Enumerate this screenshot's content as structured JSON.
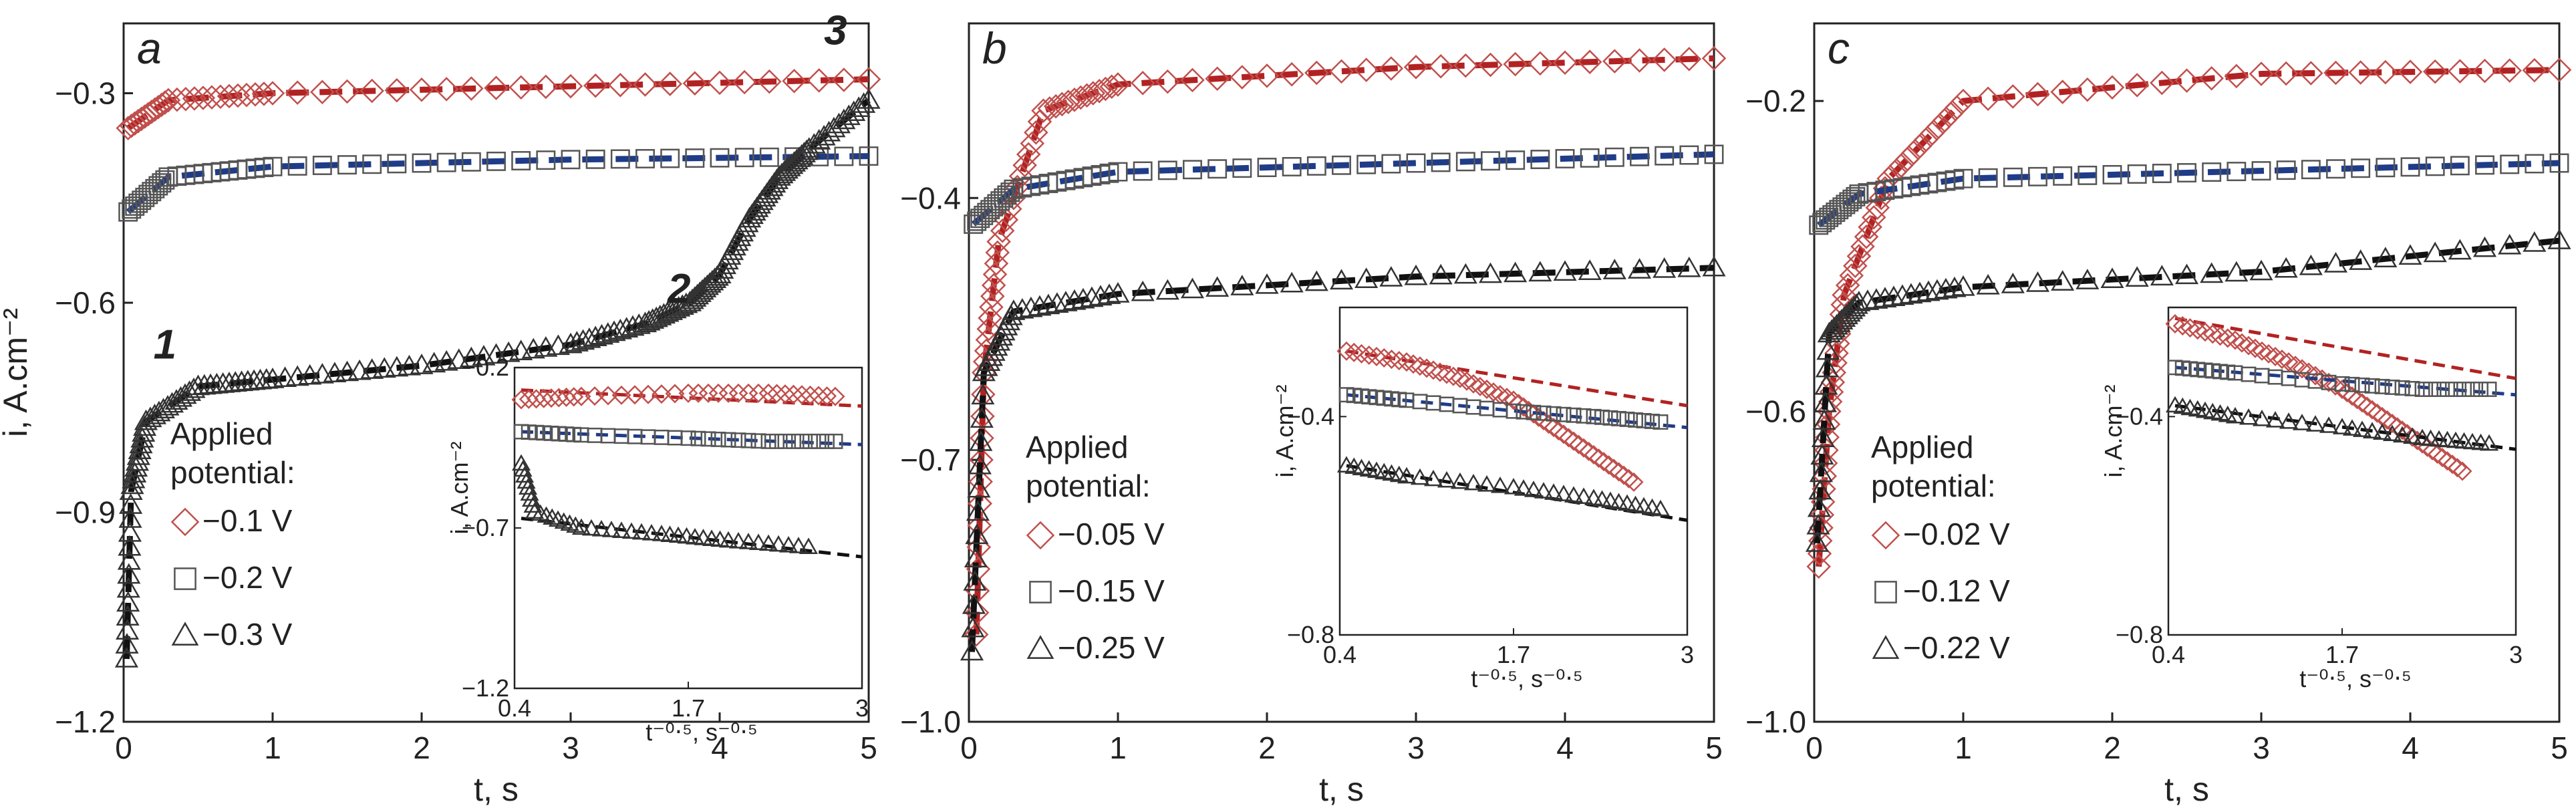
{
  "chart_data": [
    {
      "type": "scatter",
      "letter": "a",
      "xlabel": "t, s",
      "ylabel": "i, A.cm⁻²",
      "xlim": [
        0,
        5
      ],
      "ylim": [
        -1.2,
        -0.2
      ],
      "xticks": [
        "0",
        "1",
        "2",
        "3",
        "4",
        "5"
      ],
      "yticks": [
        "-0.3",
        "-0.6",
        "-0.9",
        "-1.2"
      ],
      "legend_title": [
        "Applied",
        "potential:"
      ],
      "annotations": [
        {
          "text": "1",
          "x": 0.2,
          "y": -0.68
        },
        {
          "text": "2",
          "x": 3.65,
          "y": -0.6
        },
        {
          "text": "3",
          "x": 4.7,
          "y": -0.23
        }
      ],
      "series": [
        {
          "name": "−0.1 V",
          "marker": "diamond",
          "color": "#c0504d",
          "fit_color": "#b22222",
          "points": [
            [
              0.03,
              -0.35
            ],
            [
              0.3,
              -0.31
            ],
            [
              1,
              -0.3
            ],
            [
              3,
              -0.29
            ],
            [
              5,
              -0.28
            ]
          ]
        },
        {
          "name": "−0.2 V",
          "marker": "square",
          "color": "#555555",
          "fit_color": "#1f3c88",
          "points": [
            [
              0.03,
              -0.47
            ],
            [
              0.3,
              -0.42
            ],
            [
              1,
              -0.405
            ],
            [
              3,
              -0.395
            ],
            [
              5,
              -0.39
            ]
          ]
        },
        {
          "name": "−0.3 V",
          "marker": "triangle",
          "color": "#333333",
          "fit_color": "#111111",
          "points": [
            [
              0.02,
              -1.11
            ],
            [
              0.05,
              -0.87
            ],
            [
              0.15,
              -0.77
            ],
            [
              0.5,
              -0.72
            ],
            [
              1,
              -0.71
            ],
            [
              2,
              -0.69
            ],
            [
              3,
              -0.66
            ],
            [
              3.5,
              -0.63
            ],
            [
              3.8,
              -0.6
            ],
            [
              4.0,
              -0.56
            ],
            [
              4.2,
              -0.48
            ],
            [
              4.4,
              -0.42
            ],
            [
              4.6,
              -0.38
            ],
            [
              5.0,
              -0.31
            ]
          ]
        }
      ],
      "inset": {
        "xlabel": "t⁻⁰‧⁵, s⁻⁰‧⁵",
        "ylabel": "i, A.cm⁻²",
        "xlim": [
          0.4,
          3
        ],
        "ylim": [
          -1.2,
          -0.2
        ],
        "xticks": [
          "0.4",
          "1.7",
          "3"
        ],
        "yticks": [
          "-0.2",
          "-0.7",
          "-1.2"
        ],
        "series": [
          {
            "points": [
              [
                0.45,
                -0.3
              ],
              [
                0.9,
                -0.29
              ],
              [
                1.7,
                -0.28
              ],
              [
                2.3,
                -0.28
              ],
              [
                2.8,
                -0.29
              ]
            ],
            "fit": [
              [
                0.45,
                -0.27
              ],
              [
                3,
                -0.32
              ]
            ]
          },
          {
            "points": [
              [
                0.45,
                -0.4
              ],
              [
                0.9,
                -0.41
              ],
              [
                1.7,
                -0.42
              ],
              [
                2.3,
                -0.43
              ],
              [
                2.8,
                -0.43
              ]
            ],
            "fit": [
              [
                0.45,
                -0.4
              ],
              [
                3,
                -0.44
              ]
            ]
          },
          {
            "points": [
              [
                0.45,
                -0.5
              ],
              [
                0.55,
                -0.65
              ],
              [
                0.9,
                -0.7
              ],
              [
                1.5,
                -0.72
              ],
              [
                2.0,
                -0.74
              ],
              [
                2.6,
                -0.76
              ]
            ],
            "fit": [
              [
                0.45,
                -0.67
              ],
              [
                3,
                -0.79
              ]
            ]
          }
        ]
      }
    },
    {
      "type": "scatter",
      "letter": "b",
      "xlabel": "t, s",
      "ylabel": "",
      "xlim": [
        0,
        5
      ],
      "ylim": [
        -1.0,
        -0.2
      ],
      "xticks": [
        "0",
        "1",
        "2",
        "3",
        "4",
        "5"
      ],
      "yticks": [
        "-0.4",
        "-0.7",
        "-1.0"
      ],
      "legend_title": [
        "Applied",
        "potential:"
      ],
      "series": [
        {
          "name": "−0.05 V",
          "marker": "diamond",
          "color": "#c0504d",
          "fit_color": "#b22222",
          "points": [
            [
              0.05,
              -0.9
            ],
            [
              0.1,
              -0.6
            ],
            [
              0.2,
              -0.45
            ],
            [
              0.5,
              -0.3
            ],
            [
              1,
              -0.27
            ],
            [
              3,
              -0.25
            ],
            [
              5,
              -0.24
            ]
          ]
        },
        {
          "name": "−0.15 V",
          "marker": "square",
          "color": "#555555",
          "fit_color": "#1f3c88",
          "points": [
            [
              0.03,
              -0.43
            ],
            [
              0.3,
              -0.39
            ],
            [
              1,
              -0.37
            ],
            [
              3,
              -0.36
            ],
            [
              5,
              -0.35
            ]
          ]
        },
        {
          "name": "−0.25 V",
          "marker": "triangle",
          "color": "#333333",
          "fit_color": "#111111",
          "points": [
            [
              0.02,
              -0.92
            ],
            [
              0.1,
              -0.6
            ],
            [
              0.3,
              -0.53
            ],
            [
              1,
              -0.51
            ],
            [
              3,
              -0.49
            ],
            [
              5,
              -0.48
            ]
          ]
        }
      ],
      "inset": {
        "xlabel": "t⁻⁰‧⁵, s⁻⁰‧⁵",
        "ylabel": "i, A.cm⁻²",
        "xlim": [
          0.4,
          3
        ],
        "ylim": [
          -0.8,
          -0.2
        ],
        "xticks": [
          "0.4",
          "1.7",
          "3"
        ],
        "yticks": [
          "-0.4",
          "-0.8"
        ],
        "series": [
          {
            "points": [
              [
                0.45,
                -0.28
              ],
              [
                0.9,
                -0.3
              ],
              [
                1.3,
                -0.33
              ],
              [
                1.7,
                -0.37
              ],
              [
                2.0,
                -0.42
              ],
              [
                2.3,
                -0.47
              ],
              [
                2.6,
                -0.52
              ]
            ],
            "fit": [
              [
                0.45,
                -0.28
              ],
              [
                3,
                -0.38
              ]
            ]
          },
          {
            "points": [
              [
                0.45,
                -0.36
              ],
              [
                0.9,
                -0.37
              ],
              [
                1.7,
                -0.39
              ],
              [
                2.3,
                -0.4
              ],
              [
                2.8,
                -0.41
              ]
            ],
            "fit": [
              [
                0.45,
                -0.36
              ],
              [
                3,
                -0.42
              ]
            ]
          },
          {
            "points": [
              [
                0.45,
                -0.49
              ],
              [
                0.9,
                -0.51
              ],
              [
                1.7,
                -0.53
              ],
              [
                2.3,
                -0.55
              ],
              [
                2.8,
                -0.57
              ]
            ],
            "fit": [
              [
                0.45,
                -0.49
              ],
              [
                3,
                -0.59
              ]
            ]
          }
        ]
      }
    },
    {
      "type": "scatter",
      "letter": "c",
      "xlabel": "t, s",
      "ylabel": "",
      "xlim": [
        0,
        5
      ],
      "ylim": [
        -1.0,
        -0.1
      ],
      "xticks": [
        "0",
        "1",
        "2",
        "3",
        "4",
        "5"
      ],
      "yticks": [
        "-0.2",
        "-0.6",
        "-1.0"
      ],
      "legend_title": [
        "Applied",
        "potential:"
      ],
      "series": [
        {
          "name": "−0.02 V",
          "marker": "diamond",
          "color": "#c0504d",
          "fit_color": "#b22222",
          "points": [
            [
              0.03,
              -0.8
            ],
            [
              0.1,
              -0.6
            ],
            [
              0.2,
              -0.45
            ],
            [
              0.5,
              -0.3
            ],
            [
              1,
              -0.2
            ],
            [
              3,
              -0.165
            ],
            [
              5,
              -0.16
            ]
          ]
        },
        {
          "name": "−0.12 V",
          "marker": "square",
          "color": "#555555",
          "fit_color": "#1f3c88",
          "points": [
            [
              0.03,
              -0.36
            ],
            [
              0.3,
              -0.32
            ],
            [
              1,
              -0.3
            ],
            [
              3,
              -0.29
            ],
            [
              5,
              -0.28
            ]
          ]
        },
        {
          "name": "−0.22 V",
          "marker": "triangle",
          "color": "#333333",
          "fit_color": "#111111",
          "points": [
            [
              0.02,
              -0.77
            ],
            [
              0.1,
              -0.5
            ],
            [
              0.3,
              -0.46
            ],
            [
              1,
              -0.44
            ],
            [
              3,
              -0.42
            ],
            [
              5,
              -0.38
            ]
          ]
        }
      ],
      "inset": {
        "xlabel": "t⁻⁰‧⁵, s⁻⁰‧⁵",
        "ylabel": "i, A.cm⁻²",
        "xlim": [
          0.4,
          3
        ],
        "ylim": [
          -0.8,
          -0.2
        ],
        "xticks": [
          "0.4",
          "1.7",
          "3"
        ],
        "yticks": [
          "-0.4",
          "-0.8"
        ],
        "series": [
          {
            "points": [
              [
                0.45,
                -0.23
              ],
              [
                0.9,
                -0.26
              ],
              [
                1.3,
                -0.3
              ],
              [
                1.7,
                -0.35
              ],
              [
                2.0,
                -0.4
              ],
              [
                2.3,
                -0.45
              ],
              [
                2.6,
                -0.5
              ]
            ],
            "fit": [
              [
                0.45,
                -0.22
              ],
              [
                3,
                -0.33
              ]
            ]
          },
          {
            "points": [
              [
                0.45,
                -0.31
              ],
              [
                0.9,
                -0.32
              ],
              [
                1.7,
                -0.34
              ],
              [
                2.3,
                -0.35
              ],
              [
                2.8,
                -0.35
              ]
            ],
            "fit": [
              [
                0.45,
                -0.31
              ],
              [
                3,
                -0.36
              ]
            ]
          },
          {
            "points": [
              [
                0.45,
                -0.38
              ],
              [
                0.9,
                -0.4
              ],
              [
                1.7,
                -0.42
              ],
              [
                2.3,
                -0.44
              ],
              [
                2.8,
                -0.45
              ]
            ],
            "fit": [
              [
                0.45,
                -0.38
              ],
              [
                3,
                -0.46
              ]
            ]
          }
        ]
      }
    }
  ]
}
